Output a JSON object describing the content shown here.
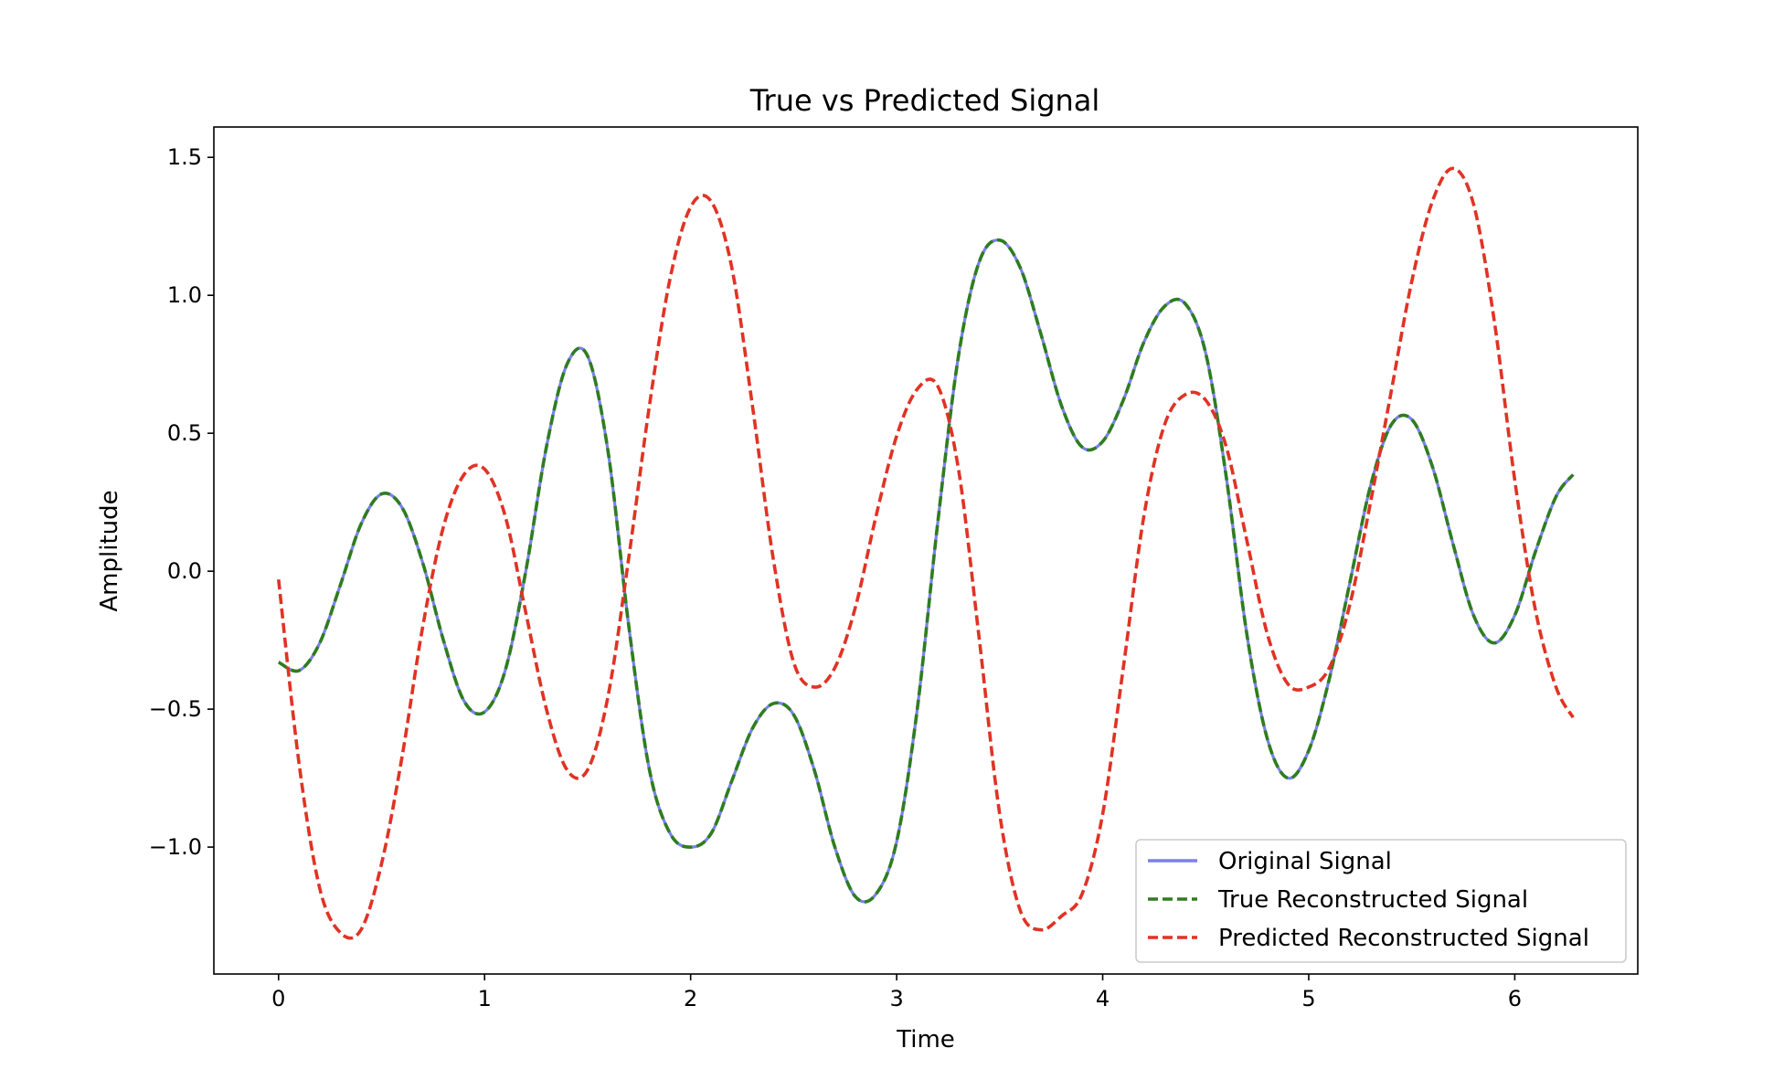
{
  "chart_data": {
    "type": "line",
    "title": "True vs Predicted Signal",
    "xlabel": "Time",
    "ylabel": "Amplitude",
    "xlim": [
      -0.314,
      6.597
    ],
    "ylim": [
      -1.46,
      1.61
    ],
    "xticks": [
      0,
      1,
      2,
      3,
      4,
      5,
      6
    ],
    "xtick_labels": [
      "0",
      "1",
      "2",
      "3",
      "4",
      "5",
      "6"
    ],
    "yticks": [
      -1.0,
      -0.5,
      0.0,
      0.5,
      1.0,
      1.5
    ],
    "ytick_labels": [
      "−1.0",
      "−0.5",
      "0.0",
      "0.5",
      "1.0",
      "1.5"
    ],
    "grid": false,
    "legend_position": "lower-right",
    "x": [
      0,
      0.1,
      0.2,
      0.3,
      0.4,
      0.5,
      0.6,
      0.7,
      0.8,
      0.9,
      1.0,
      1.1,
      1.2,
      1.3,
      1.4,
      1.5,
      1.6,
      1.7,
      1.8,
      1.9,
      2.0,
      2.1,
      2.2,
      2.3,
      2.4,
      2.5,
      2.6,
      2.7,
      2.8,
      2.9,
      3.0,
      3.1,
      3.2,
      3.3,
      3.4,
      3.5,
      3.6,
      3.7,
      3.8,
      3.9,
      4.0,
      4.1,
      4.2,
      4.3,
      4.4,
      4.5,
      4.6,
      4.7,
      4.8,
      4.9,
      5.0,
      5.1,
      5.2,
      5.3,
      5.4,
      5.5,
      5.6,
      5.7,
      5.8,
      5.9,
      6.0,
      6.1,
      6.2,
      6.283
    ],
    "series": [
      {
        "name": "Original Signal",
        "style": "solid",
        "color": "#7b7ff0",
        "values": [
          -0.33,
          -0.36,
          -0.26,
          -0.05,
          0.17,
          0.28,
          0.23,
          0.03,
          -0.25,
          -0.47,
          -0.51,
          -0.36,
          0.0,
          0.45,
          0.75,
          0.78,
          0.43,
          -0.2,
          -0.72,
          -0.95,
          -1.0,
          -0.95,
          -0.76,
          -0.57,
          -0.48,
          -0.52,
          -0.72,
          -1.0,
          -1.18,
          -1.17,
          -0.98,
          -0.5,
          0.18,
          0.78,
          1.12,
          1.2,
          1.1,
          0.86,
          0.6,
          0.45,
          0.47,
          0.62,
          0.83,
          0.96,
          0.97,
          0.79,
          0.34,
          -0.23,
          -0.61,
          -0.75,
          -0.65,
          -0.39,
          -0.04,
          0.31,
          0.53,
          0.55,
          0.38,
          0.1,
          -0.16,
          -0.26,
          -0.16,
          0.07,
          0.27,
          0.35
        ]
      },
      {
        "name": "True Reconstructed Signal",
        "style": "dashed",
        "color": "#2e7d1f",
        "values": [
          -0.33,
          -0.36,
          -0.26,
          -0.05,
          0.17,
          0.28,
          0.23,
          0.03,
          -0.25,
          -0.47,
          -0.51,
          -0.36,
          0.0,
          0.45,
          0.75,
          0.78,
          0.43,
          -0.2,
          -0.72,
          -0.95,
          -1.0,
          -0.95,
          -0.76,
          -0.57,
          -0.48,
          -0.52,
          -0.72,
          -1.0,
          -1.18,
          -1.17,
          -0.98,
          -0.5,
          0.18,
          0.78,
          1.12,
          1.2,
          1.1,
          0.86,
          0.6,
          0.45,
          0.47,
          0.62,
          0.83,
          0.96,
          0.97,
          0.79,
          0.34,
          -0.23,
          -0.61,
          -0.75,
          -0.65,
          -0.39,
          -0.04,
          0.31,
          0.53,
          0.55,
          0.38,
          0.1,
          -0.16,
          -0.26,
          -0.16,
          0.07,
          0.27,
          0.35
        ]
      },
      {
        "name": "Predicted Reconstructed Signal",
        "style": "dashed",
        "color": "#e03324",
        "values": [
          -0.03,
          -0.7,
          -1.15,
          -1.31,
          -1.3,
          -1.06,
          -0.67,
          -0.2,
          0.16,
          0.35,
          0.37,
          0.2,
          -0.15,
          -0.5,
          -0.72,
          -0.72,
          -0.45,
          0.05,
          0.6,
          1.06,
          1.32,
          1.34,
          1.1,
          0.6,
          0.05,
          -0.33,
          -0.42,
          -0.35,
          -0.13,
          0.2,
          0.49,
          0.66,
          0.67,
          0.37,
          -0.24,
          -0.88,
          -1.23,
          -1.3,
          -1.25,
          -1.17,
          -0.88,
          -0.35,
          0.2,
          0.53,
          0.64,
          0.62,
          0.45,
          0.11,
          -0.23,
          -0.41,
          -0.42,
          -0.35,
          -0.12,
          0.25,
          0.65,
          1.05,
          1.34,
          1.46,
          1.33,
          0.91,
          0.33,
          -0.14,
          -0.42,
          -0.53
        ]
      }
    ]
  }
}
